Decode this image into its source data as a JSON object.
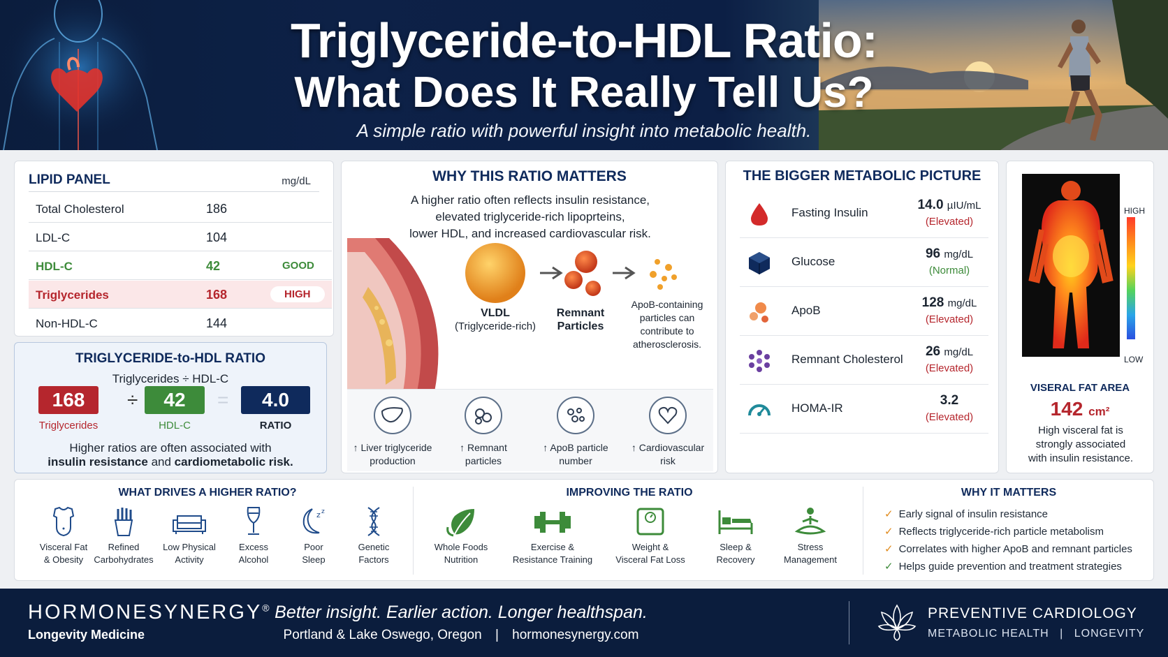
{
  "header": {
    "title_line1": "Triglyceride-to-HDL Ratio:",
    "title_line2": "What Does It Really Tell Us?",
    "subtitle": "A simple ratio with powerful insight into metabolic health."
  },
  "lipid_panel": {
    "title": "LIPID PANEL",
    "unit": "mg/dL",
    "rows": [
      {
        "name": "Total Cholesterol",
        "value": "186",
        "tag": ""
      },
      {
        "name": "LDL-C",
        "value": "104",
        "tag": ""
      },
      {
        "name": "HDL-C",
        "value": "42",
        "tag": "GOOD"
      },
      {
        "name": "Triglycerides",
        "value": "168",
        "tag": "HIGH"
      },
      {
        "name": "Non-HDL-C",
        "value": "144",
        "tag": ""
      }
    ]
  },
  "ratio": {
    "title": "TRIGLYCERIDE-to-HDL RATIO",
    "formula": "Triglycerides ÷ HDL-C",
    "tg_value": "168",
    "divide": "÷",
    "hdl_value": "42",
    "equals": "=",
    "ratio_value": "4.0",
    "tg_label": "Triglycerides",
    "hdl_label": "HDL-C",
    "ratio_label": "RATIO",
    "note_line1": "Higher ratios are often associated with",
    "note_bold1": "insulin resistance",
    "note_mid": " and ",
    "note_bold2": "cardiometabolic risk."
  },
  "why_matters": {
    "title": "WHY THIS RATIO MATTERS",
    "desc_line1": "A higher ratio often reflects insulin resistance,",
    "desc_line2": "elevated triglyceride-rich lipoprteins,",
    "desc_line3": "lower HDL, and increased cardiovascular risk.",
    "vldl_title": "VLDL",
    "vldl_sub": "(Triglyceride-rich)",
    "remnant_title": "Remnant",
    "remnant_title2": "Particles",
    "apob_line1": "ApoB-containing",
    "apob_line2": "particles can",
    "apob_line3": "contribute to",
    "apob_line4": "atherosclerosis.",
    "items": [
      {
        "icon": "liver-icon",
        "line1": "↑ Liver triglyceride",
        "line2": "production"
      },
      {
        "icon": "particles-icon",
        "line1": "↑ Remnant",
        "line2": "particles"
      },
      {
        "icon": "apob-icon",
        "line1": "↑ ApoB particle",
        "line2": "number"
      },
      {
        "icon": "heart-icon",
        "line1": "↑ Cardiovascular",
        "line2": "risk"
      }
    ]
  },
  "metabolic": {
    "title": "THE BIGGER METABOLIC PICTURE",
    "rows": [
      {
        "icon": "drop-icon",
        "name": "Fasting Insulin",
        "value": "14.0",
        "unit": "µIU/mL",
        "status": "(Elevated)"
      },
      {
        "icon": "cube-icon",
        "name": "Glucose",
        "value": "96",
        "unit": "mg/dL",
        "status": "(Normal)"
      },
      {
        "icon": "apob-dots-icon",
        "name": "ApoB",
        "value": "128",
        "unit": "mg/dL",
        "status": "(Elevated)"
      },
      {
        "icon": "remnant-dots-icon",
        "name": "Remnant Cholesterol",
        "value": "26",
        "unit": "mg/dL",
        "status": "(Elevated)"
      },
      {
        "icon": "gauge-icon",
        "name": "HOMA-IR",
        "value": "3.2",
        "unit": "",
        "status": "(Elevated)"
      }
    ]
  },
  "visceral": {
    "high": "HIGH",
    "low": "LOW",
    "title": "VISERAL FAT AREA",
    "value": "142",
    "unit": "cm²",
    "desc_line1": "High visceral fat is",
    "desc_line2": "strongly associated",
    "desc_line3": "with insulin resistance."
  },
  "drivers": {
    "title": "WHAT DRIVES A HIGHER RATIO?",
    "items": [
      {
        "icon": "body-icon",
        "line1": "Visceral Fat",
        "line2": "& Obesity"
      },
      {
        "icon": "fries-icon",
        "line1": "Refined",
        "line2": "Carbohydrates"
      },
      {
        "icon": "couch-icon",
        "line1": "Low Physical",
        "line2": "Activity"
      },
      {
        "icon": "wine-icon",
        "line1": "Excess",
        "line2": "Alcohol"
      },
      {
        "icon": "moon-icon",
        "line1": "Poor",
        "line2": "Sleep"
      },
      {
        "icon": "dna-icon",
        "line1": "Genetic",
        "line2": "Factors"
      }
    ]
  },
  "improving": {
    "title": "IMPROVING THE RATIO",
    "items": [
      {
        "icon": "leaf-icon",
        "line1": "Whole Foods",
        "line2": "Nutrition"
      },
      {
        "icon": "dumbbell-icon",
        "line1": "Exercise &",
        "line2": "Resistance Training"
      },
      {
        "icon": "scale-icon",
        "line1": "Weight &",
        "line2": "Visceral Fat Loss"
      },
      {
        "icon": "bed-icon",
        "line1": "Sleep &",
        "line2": "Recovery"
      },
      {
        "icon": "meditation-icon",
        "line1": "Stress",
        "line2": "Management"
      }
    ]
  },
  "why_it_matters": {
    "title": "WHY IT MATTERS",
    "items": [
      "Early signal of insulin resistance",
      "Reflects triglyceride-rich particle metabolism",
      "Correlates with higher ApoB and remnant particles",
      "Helps guide prevention and treatment strategies"
    ]
  },
  "footer": {
    "brand": "HORMONESYNERGY",
    "brand_mark": "®",
    "brand_sub": "Longevity Medicine",
    "tagline": "Better insight. Earlier action. Longer healthspan.",
    "location": "Portland & Lake Oswego, Oregon",
    "separator": "|",
    "website": "hormonesynergy.com",
    "right_title": "PREVENTIVE CARDIOLOGY",
    "right_sub1": "METABOLIC HEALTH",
    "right_sub2": "LONGEVITY"
  },
  "colors": {
    "navy": "#0f2a5c",
    "red": "#b5262d",
    "green": "#3d8b3a",
    "footer_bg": "#0b1d3d"
  }
}
